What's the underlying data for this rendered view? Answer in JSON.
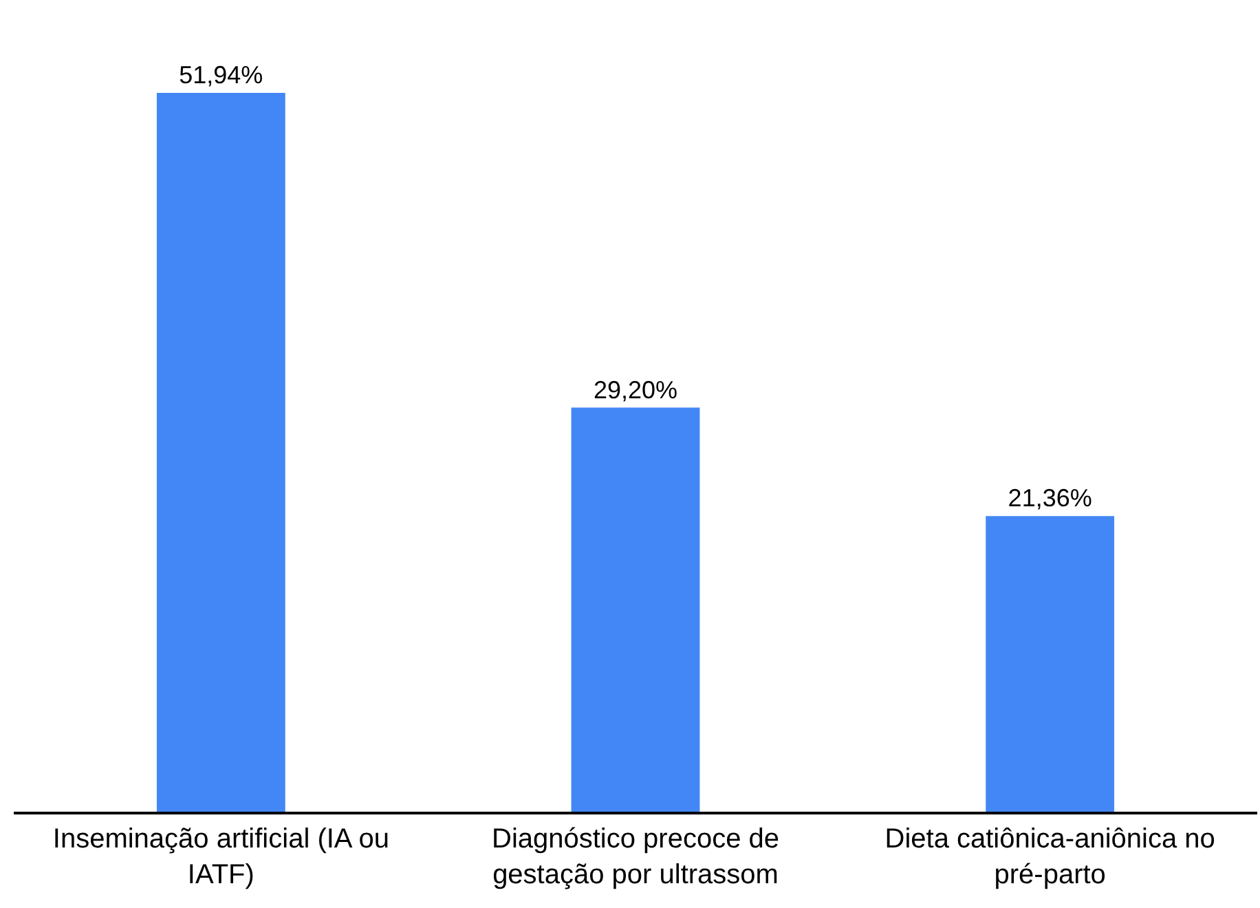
{
  "chart_data": {
    "type": "bar",
    "categories": [
      "Inseminação artificial (IA ou IATF)",
      "Diagnóstico precoce de gestação por ultrassom",
      "Dieta catiônica-aniônica no pré-parto"
    ],
    "values": [
      51.94,
      29.2,
      21.36
    ],
    "value_labels": [
      "51,94%",
      "29,20%",
      "21,36%"
    ],
    "color": "#4287f5"
  }
}
